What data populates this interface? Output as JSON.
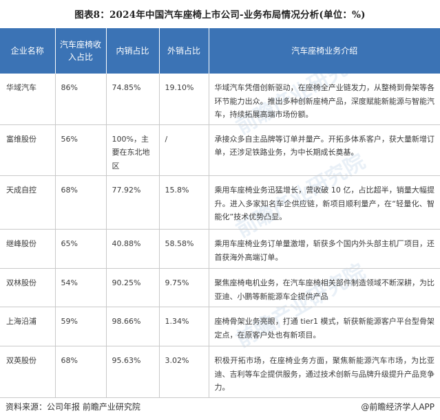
{
  "title": "图表8：2024年中国汽车座椅上市公司-业务布局情况分析(单位：%)",
  "table": {
    "headers": [
      "企业名称",
      "汽车座椅收入占比",
      "内销占比",
      "外销占比",
      "汽车座椅业务介绍"
    ],
    "rows": [
      [
        "华域汽车",
        "86%",
        "74.85%",
        "19.10%",
        "华域汽车凭借创新驱动，在座椅全产业链发力，从整椅到骨架等各环节能力出众。推出多种创新座椅产品，深度赋能新能源与智能汽车，持续拓展高端市场份额。"
      ],
      [
        "富维股份",
        "56%",
        "100%，主要在东北地区",
        "/",
        "承接众多自主品牌等订单并量产。开拓多体系客户，获大量新增订单，还涉足铁路业务，为中长期成长奠基。"
      ],
      [
        "天成自控",
        "68%",
        "77.92%",
        "15.8%",
        "乘用车座椅业务迅猛增长，营收破 10 亿，占比超半，销量大幅提升。进入多家知名车企供应链，新项目顺利量产，在“轻量化、智能化”技术优势凸显。"
      ],
      [
        "继峰股份",
        "65%",
        "40.88%",
        "58.58%",
        "乘用车座椅业务订单量激增，斩获多个国内外头部主机厂项目，还首获海外高端订单。"
      ],
      [
        "双林股份",
        "54%",
        "90.25%",
        "9.75%",
        "聚焦座椅电机业务，在汽车座椅相关部件制造领域不断深耕，为比亚迪、小鹏等新能源车企提供产品"
      ],
      [
        "上海沿浦",
        "59%",
        "98.66%",
        "1.34%",
        "座椅骨架业务亮眼，打通 tier1 模式，斩获新能源客户平台型骨架定点，在原客户处也有新项目。"
      ],
      [
        "双英股份",
        "68%",
        "95.63%",
        "3.02%",
        "积极开拓市场，在座椅业务方面，聚焦新能源汽车市场，为比亚迪、吉利等车企提供服务，通过技术创新与品牌升级提升产品竞争力。"
      ]
    ]
  },
  "footer": {
    "source": "资料来源：公司年报 前瞻产业研究院",
    "brand": "@前瞻经济学人APP"
  },
  "watermark": "前瞻产业研究院"
}
